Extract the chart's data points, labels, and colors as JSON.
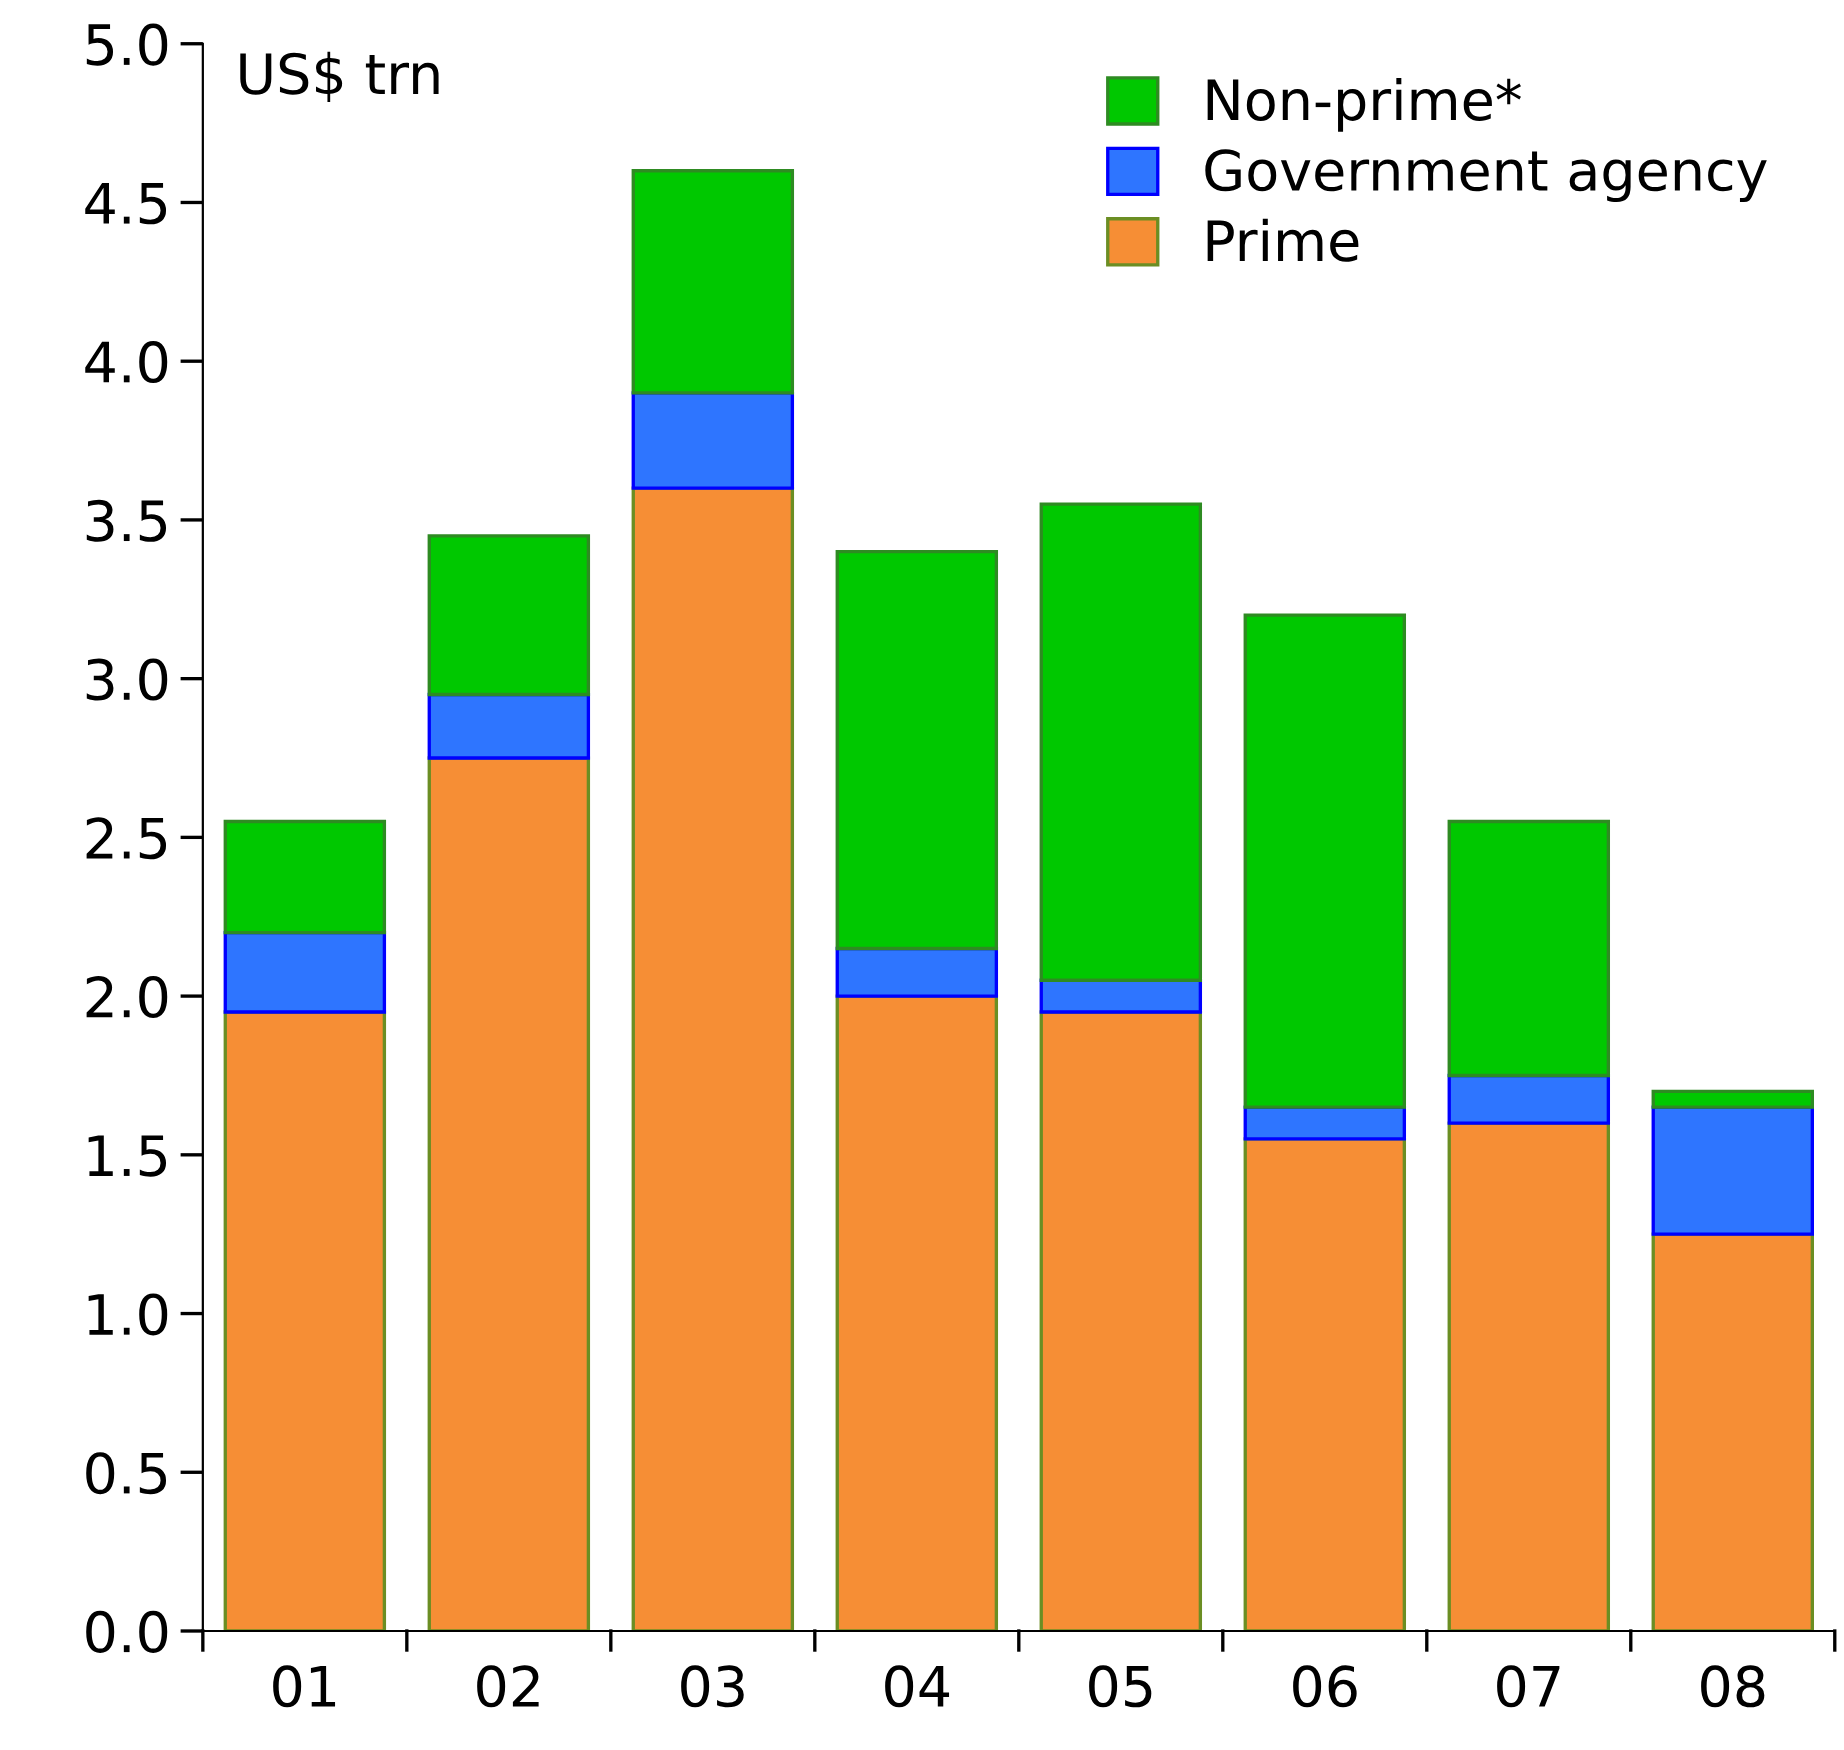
{
  "chart_data": {
    "type": "bar",
    "stacked": true,
    "ylabel": "US$ trn",
    "categories": [
      "01",
      "02",
      "03",
      "04",
      "05",
      "06",
      "07",
      "08"
    ],
    "series": [
      {
        "name": "Prime",
        "color": "#f68e35",
        "values": [
          1.95,
          2.75,
          3.6,
          2.0,
          1.95,
          1.55,
          1.6,
          1.25
        ]
      },
      {
        "name": "Government agency",
        "color": "#2e75ff",
        "values": [
          0.25,
          0.2,
          0.3,
          0.15,
          0.1,
          0.1,
          0.15,
          0.4
        ]
      },
      {
        "name": "Non-prime*",
        "color": "#00c800",
        "values": [
          0.35,
          0.5,
          0.7,
          1.25,
          1.5,
          1.55,
          0.8,
          0.05
        ]
      }
    ],
    "ylim": [
      0,
      5
    ],
    "yticks": [
      {
        "value": 0,
        "label": "0.0"
      },
      {
        "value": 0.5,
        "label": "0.5"
      },
      {
        "value": 1,
        "label": "1.0"
      },
      {
        "value": 1.5,
        "label": "1.5"
      },
      {
        "value": 2,
        "label": "2.0"
      },
      {
        "value": 2.5,
        "label": "2.5"
      },
      {
        "value": 3,
        "label": "3.0"
      },
      {
        "value": 3.5,
        "label": "3.5"
      },
      {
        "value": 4,
        "label": "4.0"
      },
      {
        "value": 4.5,
        "label": "4.5"
      },
      {
        "value": 5,
        "label": "5.0"
      }
    ],
    "grid": false,
    "legend": "top right"
  }
}
